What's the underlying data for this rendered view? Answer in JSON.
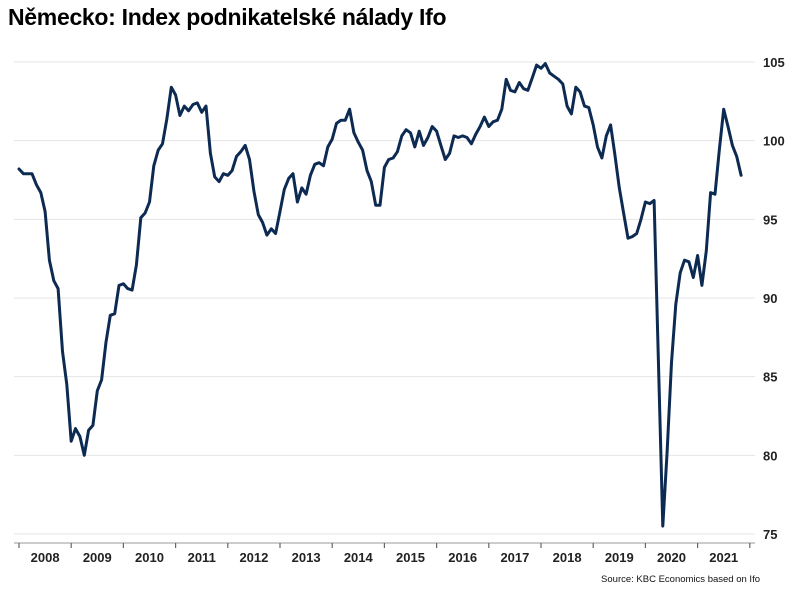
{
  "chart_data": {
    "type": "line",
    "title": "Německo: Index podnikatelské nálady Ifo",
    "source": "Source: KBC Economics based on Ifo",
    "xlabel": "",
    "ylabel": "",
    "ylim": [
      75,
      105
    ],
    "yticks": [
      75,
      80,
      85,
      90,
      95,
      100,
      105
    ],
    "ytick_labels": [
      "75",
      "80",
      "85",
      "90",
      "95",
      "100",
      "105"
    ],
    "xtick_labels": [
      "2008",
      "2009",
      "2010",
      "2011",
      "2012",
      "2013",
      "2014",
      "2015",
      "2016",
      "2017",
      "2018",
      "2019",
      "2020",
      "2021"
    ],
    "x_start": "2008-01",
    "frequency": "monthly",
    "line_color": "#0c2a52",
    "grid": "horizontal",
    "y_axis_position": "right",
    "series": [
      {
        "values": [
          98.2,
          97.9,
          97.9,
          97.9,
          97.2,
          96.7,
          95.5,
          92.4,
          91.1,
          90.6,
          86.6,
          84.5,
          80.9,
          81.7,
          81.2,
          80.0,
          81.6,
          81.9,
          84.1,
          84.8,
          87.2,
          88.9,
          89.0,
          90.8,
          90.9,
          90.6,
          90.5,
          92.1,
          95.1,
          95.4,
          96.1,
          98.4,
          99.4,
          99.8,
          101.4,
          103.4,
          102.9,
          101.6,
          102.2,
          101.9,
          102.3,
          102.4,
          101.8,
          102.2,
          99.2,
          97.7,
          97.4,
          97.9,
          97.8,
          98.1,
          99.0,
          99.3,
          99.7,
          98.8,
          96.8,
          95.3,
          94.8,
          94.0,
          94.4,
          94.1,
          95.5,
          96.9,
          97.6,
          97.9,
          96.1,
          97.0,
          96.6,
          97.8,
          98.5,
          98.6,
          98.4,
          99.6,
          100.1,
          101.1,
          101.3,
          101.3,
          102.0,
          100.5,
          99.9,
          99.4,
          98.1,
          97.4,
          95.9,
          95.9,
          98.3,
          98.8,
          98.9,
          99.3,
          100.3,
          100.7,
          100.5,
          99.6,
          100.6,
          99.7,
          100.2,
          100.9,
          100.6,
          99.7,
          98.8,
          99.2,
          100.3,
          100.2,
          100.3,
          100.2,
          99.8,
          100.4,
          100.9,
          101.5,
          100.9,
          101.2,
          101.3,
          102.0,
          103.9,
          103.2,
          103.1,
          103.7,
          103.3,
          103.2,
          104.0,
          104.8,
          104.6,
          104.9,
          104.3,
          104.1,
          103.9,
          103.6,
          102.2,
          101.7,
          103.4,
          103.1,
          102.2,
          102.1,
          101.0,
          99.6,
          98.9,
          100.3,
          101.0,
          99.1,
          97.0,
          95.4,
          93.8,
          93.9,
          94.1,
          95.0,
          96.1,
          96.0,
          96.2,
          86.0,
          75.5,
          80.2,
          85.9,
          89.6,
          91.6,
          92.4,
          92.3,
          91.3,
          92.7,
          90.8,
          93.0,
          96.7,
          96.6,
          99.4,
          102.0,
          100.9,
          99.7,
          99.0,
          97.8
        ]
      }
    ]
  }
}
